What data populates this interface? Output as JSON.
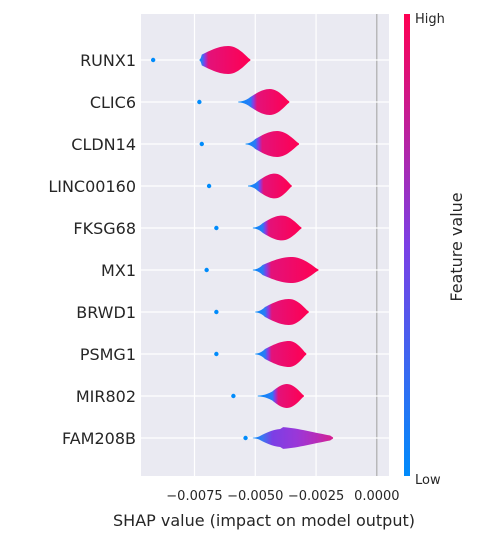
{
  "chart_data": {
    "type": "violin",
    "xlabel": "SHAP value (impact on model output)",
    "xlim": [
      -0.0097,
      0.0005
    ],
    "xticks": [
      {
        "value": -0.0075,
        "label": "−0.0075"
      },
      {
        "value": -0.005,
        "label": "−0.0050"
      },
      {
        "value": -0.0025,
        "label": "−0.0025"
      },
      {
        "value": 0.0,
        "label": "0.0000"
      }
    ],
    "grid": true,
    "colorbar": {
      "label": "Feature value",
      "high": "High",
      "low": "Low",
      "colors": {
        "low": "#008bfb",
        "mid": "#7b3fe5",
        "high": "#ff0052"
      }
    },
    "features": [
      {
        "name": "RUNX1",
        "outlier": -0.0092,
        "violin_start": -0.0073,
        "main": [
          -0.0072,
          -0.0052
        ],
        "peak": -0.0061,
        "half_height": 0.7
      },
      {
        "name": "CLIC6",
        "outlier": -0.0073,
        "violin_start": -0.0057,
        "main": [
          -0.0052,
          -0.0036
        ],
        "peak": -0.0044,
        "half_height": 0.65
      },
      {
        "name": "CLDN14",
        "outlier": -0.0072,
        "violin_start": -0.0054,
        "main": [
          -0.005,
          -0.0032
        ],
        "peak": -0.0041,
        "half_height": 0.65
      },
      {
        "name": "LINC00160",
        "outlier": -0.0069,
        "violin_start": -0.0053,
        "main": [
          -0.0049,
          -0.0035
        ],
        "peak": -0.0042,
        "half_height": 0.62
      },
      {
        "name": "FKSG68",
        "outlier": -0.0066,
        "violin_start": -0.0051,
        "main": [
          -0.0047,
          -0.0031
        ],
        "peak": -0.0039,
        "half_height": 0.62
      },
      {
        "name": "MX1",
        "outlier": -0.007,
        "violin_start": -0.0051,
        "main": [
          -0.0047,
          -0.0024
        ],
        "peak": -0.0035,
        "half_height": 0.65
      },
      {
        "name": "BRWD1",
        "outlier": -0.0066,
        "violin_start": -0.005,
        "main": [
          -0.0046,
          -0.0028
        ],
        "peak": -0.0036,
        "half_height": 0.65
      },
      {
        "name": "PSMG1",
        "outlier": -0.0066,
        "violin_start": -0.005,
        "main": [
          -0.0046,
          -0.0029
        ],
        "peak": -0.0036,
        "half_height": 0.65
      },
      {
        "name": "MIR802",
        "outlier": -0.0059,
        "violin_start": -0.0049,
        "main": [
          -0.0043,
          -0.003
        ],
        "peak": -0.0037,
        "half_height": 0.6
      },
      {
        "name": "FAM208B",
        "outlier": -0.0054,
        "violin_start": -0.0051,
        "main": [
          -0.0047,
          -0.0018
        ],
        "peak": -0.0039,
        "half_height": 0.45,
        "mixed": true
      }
    ]
  }
}
